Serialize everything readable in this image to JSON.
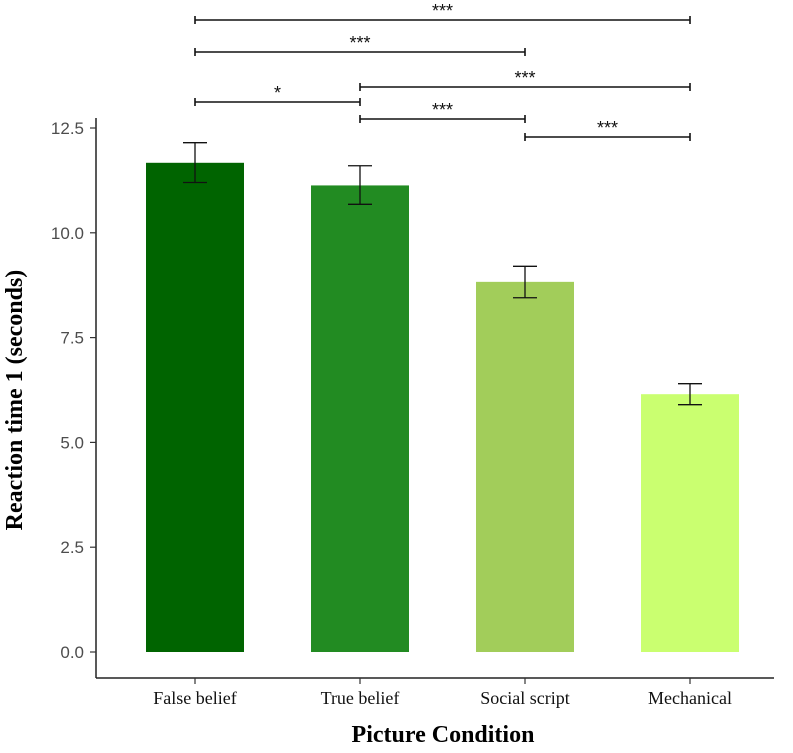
{
  "chart_data": {
    "type": "bar",
    "title": "",
    "xlabel": "Picture Condition",
    "ylabel": "Reaction time 1 (seconds)",
    "ylim": [
      0,
      12.5
    ],
    "yticks": [
      0.0,
      2.5,
      5.0,
      7.5,
      10.0,
      12.5
    ],
    "ytick_labels": [
      "0.0",
      "2.5",
      "5.0",
      "7.5",
      "10.0",
      "12.5"
    ],
    "categories": [
      "False belief",
      "True belief",
      "Social script",
      "Mechanical"
    ],
    "values": [
      11.67,
      11.13,
      8.83,
      6.15
    ],
    "error_low": [
      11.2,
      10.68,
      8.45,
      5.9
    ],
    "error_high": [
      12.15,
      11.6,
      9.2,
      6.4
    ],
    "colors": [
      "#006400",
      "#228B22",
      "#a2cd5a",
      "#caff70"
    ],
    "grid": false,
    "legend": "none",
    "significance": [
      {
        "from": "False belief",
        "to": "Mechanical",
        "label": "***"
      },
      {
        "from": "False belief",
        "to": "Social script",
        "label": "***"
      },
      {
        "from": "True belief",
        "to": "Mechanical",
        "label": "***"
      },
      {
        "from": "False belief",
        "to": "True belief",
        "label": "*"
      },
      {
        "from": "True belief",
        "to": "Social script",
        "label": "***"
      },
      {
        "from": "Social script",
        "to": "Mechanical",
        "label": "***"
      }
    ]
  }
}
